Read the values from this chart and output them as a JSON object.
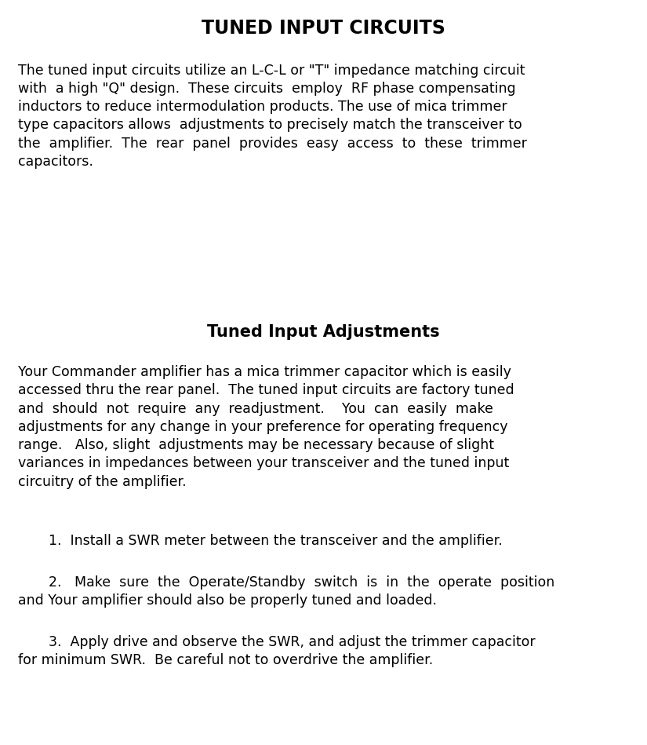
{
  "title": "TUNED INPUT CIRCUITS",
  "subtitle": "Tuned Input Adjustments",
  "paragraph1_lines": [
    "The tuned input circuits utilize an L-C-L or \"T\" impedance matching circuit",
    "with  a high \"Q\" design.  These circuits  employ  RF phase compensating",
    "inductors to reduce intermodulation products. The use of mica trimmer",
    "type capacitors allows  adjustments to precisely match the transceiver to",
    "the  amplifier.  The  rear  panel  provides  easy  access  to  these  trimmer",
    "capacitors."
  ],
  "paragraph2_lines": [
    "Your Commander amplifier has a mica trimmer capacitor which is easily",
    "accessed thru the rear panel.  The tuned input circuits are factory tuned",
    "and  should  not  require  any  readjustment.    You  can  easily  make",
    "adjustments for any change in your preference for operating frequency",
    "range.   Also, slight  adjustments may be necessary because of slight",
    "variances in impedances between your transceiver and the tuned input",
    "circuitry of the amplifier."
  ],
  "item1_lines": [
    "1.  Install a SWR meter between the transceiver and the amplifier."
  ],
  "item2_lines": [
    "2.   Make  sure  the  Operate/Standby  switch  is  in  the  operate  position",
    "and Your amplifier should also be properly tuned and loaded."
  ],
  "item3_lines": [
    "3.  Apply drive and observe the SWR, and adjust the trimmer capacitor",
    "for minimum SWR.  Be careful not to overdrive the amplifier."
  ],
  "bg_color": "#ffffff",
  "text_color": "#000000",
  "title_fontsize": 17,
  "subtitle_fontsize": 15,
  "body_fontsize": 12.5
}
